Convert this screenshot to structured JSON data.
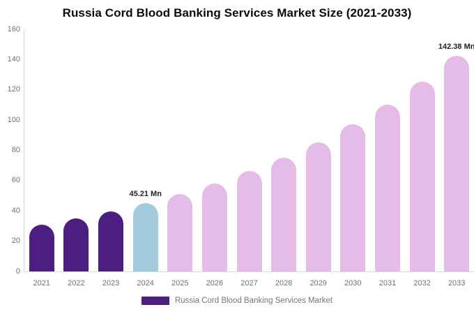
{
  "title": "Russia Cord Blood Banking Services Market Size (2021-2033)",
  "legend": {
    "label": "Russia Cord Blood Banking Services Market",
    "color_key": "historical"
  },
  "colors": {
    "historical": "#4B1E7F",
    "current": "#A3CBDF",
    "forecast": "#E5BBE7",
    "axis_line": "#DADADA",
    "tick_text": "#707070",
    "annotation_text": "#222222",
    "title_text": "#0B0B0B",
    "legend_text": "#757575"
  },
  "chart_data": {
    "type": "bar",
    "title": "Russia Cord Blood Banking Services Market Size (2021-2033)",
    "categories": [
      "2021",
      "2022",
      "2023",
      "2024",
      "2025",
      "2026",
      "2027",
      "2028",
      "2029",
      "2030",
      "2031",
      "2032",
      "2033"
    ],
    "values": [
      30.8,
      35.0,
      39.8,
      45.21,
      51.4,
      58.3,
      66.3,
      75.3,
      85.5,
      97.1,
      110.3,
      125.3,
      142.38
    ],
    "unit": "Mn",
    "bar_color_keys": [
      "historical",
      "historical",
      "historical",
      "current",
      "forecast",
      "forecast",
      "forecast",
      "forecast",
      "forecast",
      "forecast",
      "forecast",
      "forecast",
      "forecast"
    ],
    "ylim": [
      0,
      160
    ],
    "yticks": [
      0,
      20,
      40,
      60,
      80,
      100,
      120,
      140,
      160
    ],
    "xlabel": "",
    "ylabel": "",
    "grid": false,
    "legend_position": "bottom",
    "annotations": [
      {
        "category": "2024",
        "text": "45.21 Mn"
      },
      {
        "category": "2033",
        "text": "142.38 Mn"
      }
    ]
  }
}
